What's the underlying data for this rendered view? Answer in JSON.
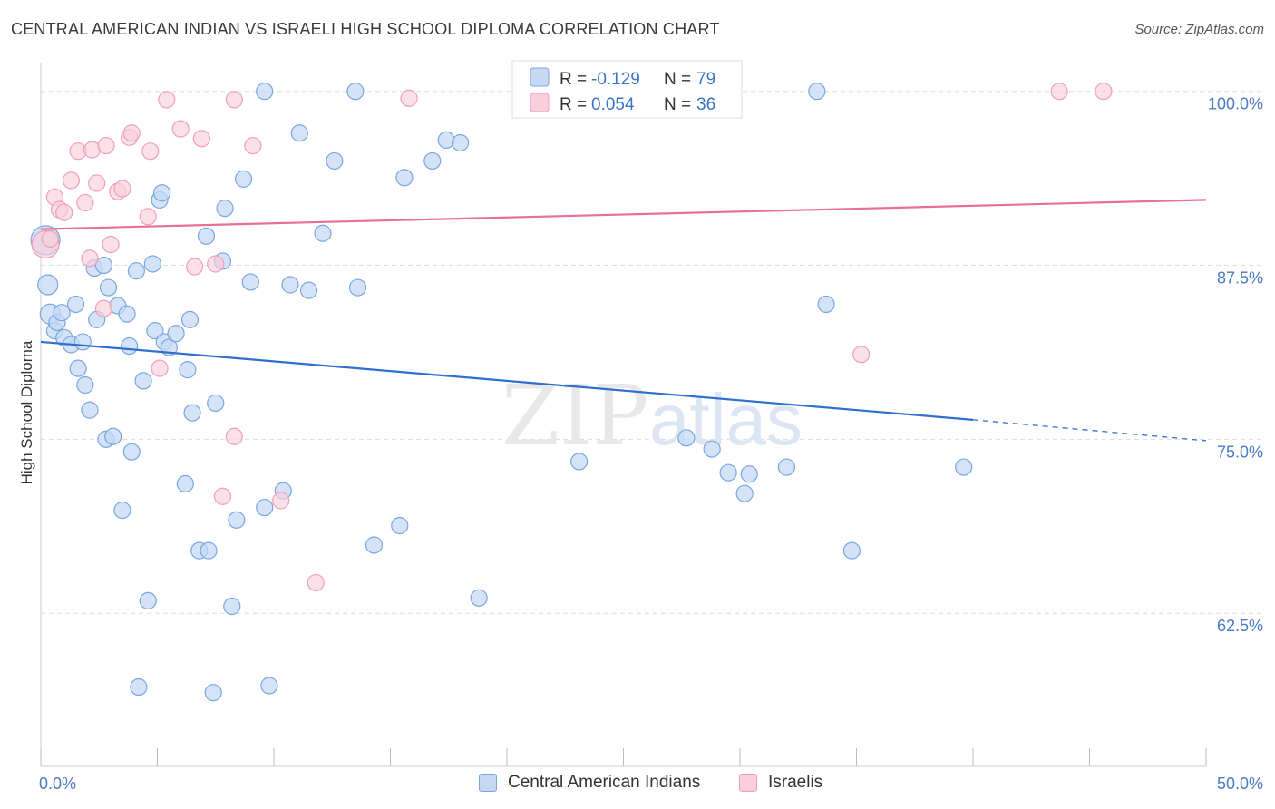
{
  "header": {
    "title": "CENTRAL AMERICAN INDIAN VS ISRAELI HIGH SCHOOL DIPLOMA CORRELATION CHART",
    "source": "Source: ZipAtlas.com"
  },
  "colors": {
    "blue_fill": "#c5d9f4",
    "blue_stroke": "#7aa6de",
    "blue_line": "#2f6fcd",
    "pink_fill": "#f9cfdc",
    "pink_stroke": "#eea0b8",
    "pink_line": "#e86f97",
    "grid": "#dddddd",
    "tick_label": "#4a7bc4"
  },
  "legend": {
    "r_label": "R =",
    "n_label": "N =",
    "blue": {
      "r": "-0.129",
      "n": "79"
    },
    "pink": {
      "r": "0.054",
      "n": "36"
    }
  },
  "watermark": {
    "zip": "ZIP",
    "atlas": "atlas"
  },
  "chart_data": {
    "type": "scatter",
    "title": "CENTRAL AMERICAN INDIAN VS ISRAELI HIGH SCHOOL DIPLOMA CORRELATION CHART",
    "xlabel": "",
    "ylabel": "High School Diploma",
    "xlim": [
      0,
      50
    ],
    "ylim": [
      51.5,
      102
    ],
    "x_tick_labels": [
      "0.0%",
      "50.0%"
    ],
    "y_ticks": [
      {
        "value": 100,
        "label": "100.0%"
      },
      {
        "value": 87.5,
        "label": "87.5%"
      },
      {
        "value": 75,
        "label": "75.0%"
      },
      {
        "value": 62.5,
        "label": "62.5%"
      }
    ],
    "series": [
      {
        "name": "Central American Indians",
        "color": "#c5d9f4",
        "trend": {
          "x0": 0,
          "y0": 82.0,
          "x1": 40,
          "y1": 76.4,
          "dash_x1": 50,
          "dash_y1": 74.9
        },
        "points": [
          [
            0.2,
            89.3
          ],
          [
            0.3,
            86.1
          ],
          [
            0.4,
            84.0
          ],
          [
            0.6,
            82.8
          ],
          [
            0.7,
            83.4
          ],
          [
            0.9,
            84.1
          ],
          [
            1.0,
            82.3
          ],
          [
            1.3,
            81.8
          ],
          [
            1.5,
            84.7
          ],
          [
            1.6,
            80.1
          ],
          [
            1.8,
            82.0
          ],
          [
            1.9,
            78.9
          ],
          [
            2.1,
            77.1
          ],
          [
            2.3,
            87.3
          ],
          [
            2.4,
            83.6
          ],
          [
            2.7,
            87.5
          ],
          [
            2.8,
            75.0
          ],
          [
            2.9,
            85.9
          ],
          [
            3.1,
            75.2
          ],
          [
            3.3,
            84.6
          ],
          [
            3.5,
            69.9
          ],
          [
            3.7,
            84.0
          ],
          [
            3.8,
            81.7
          ],
          [
            3.9,
            74.1
          ],
          [
            4.1,
            87.1
          ],
          [
            4.2,
            57.2
          ],
          [
            4.4,
            79.2
          ],
          [
            4.6,
            63.4
          ],
          [
            4.8,
            87.6
          ],
          [
            4.9,
            82.8
          ],
          [
            5.1,
            92.2
          ],
          [
            5.2,
            92.7
          ],
          [
            5.3,
            82.0
          ],
          [
            5.5,
            81.6
          ],
          [
            5.8,
            82.6
          ],
          [
            6.2,
            71.8
          ],
          [
            6.3,
            80.0
          ],
          [
            6.4,
            83.6
          ],
          [
            6.5,
            76.9
          ],
          [
            6.8,
            67.0
          ],
          [
            7.2,
            67.0
          ],
          [
            7.1,
            89.6
          ],
          [
            7.4,
            56.8
          ],
          [
            7.5,
            77.6
          ],
          [
            7.8,
            87.8
          ],
          [
            7.9,
            91.6
          ],
          [
            8.2,
            63.0
          ],
          [
            8.4,
            69.2
          ],
          [
            8.7,
            93.7
          ],
          [
            9.0,
            86.3
          ],
          [
            9.6,
            70.1
          ],
          [
            9.6,
            100.0
          ],
          [
            9.8,
            57.3
          ],
          [
            10.4,
            71.3
          ],
          [
            10.7,
            86.1
          ],
          [
            11.1,
            97.0
          ],
          [
            11.5,
            85.7
          ],
          [
            12.6,
            95.0
          ],
          [
            12.1,
            89.8
          ],
          [
            13.5,
            100.0
          ],
          [
            13.6,
            85.9
          ],
          [
            14.3,
            67.4
          ],
          [
            15.4,
            68.8
          ],
          [
            15.6,
            93.8
          ],
          [
            16.8,
            95.0
          ],
          [
            17.4,
            96.5
          ],
          [
            18.0,
            96.3
          ],
          [
            18.8,
            63.6
          ],
          [
            23.1,
            73.4
          ],
          [
            27.7,
            75.1
          ],
          [
            28.8,
            74.3
          ],
          [
            29.5,
            72.6
          ],
          [
            30.2,
            71.1
          ],
          [
            30.4,
            72.5
          ],
          [
            32.0,
            73.0
          ],
          [
            33.3,
            100.0
          ],
          [
            33.7,
            84.7
          ],
          [
            34.8,
            67.0
          ],
          [
            39.6,
            73.0
          ]
        ]
      },
      {
        "name": "Israelis",
        "color": "#f9cfdc",
        "trend": {
          "x0": 0,
          "y0": 90.1,
          "x1": 50,
          "y1": 92.2
        },
        "points": [
          [
            0.2,
            89.0
          ],
          [
            0.4,
            89.4
          ],
          [
            0.6,
            92.4
          ],
          [
            0.8,
            91.5
          ],
          [
            1.0,
            91.3
          ],
          [
            1.3,
            93.6
          ],
          [
            1.6,
            95.7
          ],
          [
            1.9,
            92.0
          ],
          [
            2.1,
            88.0
          ],
          [
            2.2,
            95.8
          ],
          [
            2.4,
            93.4
          ],
          [
            2.8,
            96.1
          ],
          [
            3.0,
            89.0
          ],
          [
            3.3,
            92.8
          ],
          [
            3.5,
            93.0
          ],
          [
            2.7,
            84.4
          ],
          [
            3.8,
            96.7
          ],
          [
            3.9,
            97.0
          ],
          [
            4.6,
            91.0
          ],
          [
            4.7,
            95.7
          ],
          [
            5.1,
            80.1
          ],
          [
            5.4,
            99.4
          ],
          [
            6.0,
            97.3
          ],
          [
            6.6,
            87.4
          ],
          [
            6.9,
            96.6
          ],
          [
            7.5,
            87.6
          ],
          [
            7.8,
            70.9
          ],
          [
            8.3,
            75.2
          ],
          [
            8.3,
            99.4
          ],
          [
            9.1,
            96.1
          ],
          [
            10.3,
            70.6
          ],
          [
            11.8,
            64.7
          ],
          [
            15.8,
            99.5
          ],
          [
            35.2,
            81.1
          ],
          [
            43.7,
            100.0
          ],
          [
            45.6,
            100.0
          ]
        ]
      }
    ]
  },
  "bottom_legend": [
    {
      "label": "Central American Indians"
    },
    {
      "label": "Israelis"
    }
  ]
}
